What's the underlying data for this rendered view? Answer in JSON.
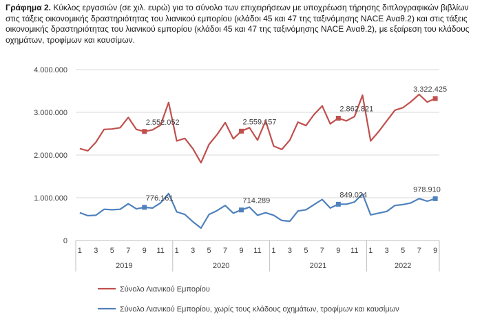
{
  "caption": {
    "label": "Γράφημα 2.",
    "text": " Κύκλος εργασιών (σε χιλ. ευρώ) για το σύνολο των επιχειρήσεων με υποχρέωση τήρησης διπλογραφικών βιβλίων στις τάξεις οικονομικής δραστηριότητας του λιανικού εμπορίου (κλάδοι 45 και 47 της ταξινόμησης NACE Αναθ.2) και στις τάξεις οικονομικής δραστηριότητας του λιανικού εμπορίου (κλάδοι 45 και 47 της ταξινόμησης NACE Αναθ.2), με εξαίρεση του κλάδους οχημάτων, τροφίμων και καυσίμων."
  },
  "chart_data": {
    "type": "line",
    "ylim": [
      0,
      4000000
    ],
    "y_ticks": [
      "0",
      "1.000.000",
      "2.000.000",
      "3.000.000",
      "4.000.000"
    ],
    "grid": true,
    "legend_position": "bottom-left",
    "x_tick_labels": [
      "1",
      "3",
      "5",
      "7",
      "9",
      "11",
      "1",
      "3",
      "5",
      "7",
      "9",
      "11",
      "1",
      "3",
      "5",
      "7",
      "9",
      "11",
      "1",
      "3",
      "5",
      "7",
      "9"
    ],
    "years": [
      "2019",
      "2020",
      "2021",
      "2022"
    ],
    "months_per_year": [
      12,
      12,
      12,
      9
    ],
    "series": [
      {
        "name": "Σύνολο Λιανικού Εμπορίου",
        "color": "#c0504d",
        "values": [
          2150000,
          2100000,
          2300000,
          2600000,
          2610000,
          2640000,
          2880000,
          2600000,
          2552052,
          2590000,
          2700000,
          3230000,
          2330000,
          2390000,
          2150000,
          1820000,
          2250000,
          2480000,
          2760000,
          2380000,
          2559157,
          2640000,
          2350000,
          2800000,
          2210000,
          2130000,
          2350000,
          2770000,
          2690000,
          2950000,
          3150000,
          2730000,
          2862821,
          2800000,
          2900000,
          3400000,
          2330000,
          2550000,
          2800000,
          3050000,
          3110000,
          3250000,
          3420000,
          3240000,
          3322425
        ],
        "markers": [
          {
            "index": 8,
            "label": "2.552.052"
          },
          {
            "index": 20,
            "label": "2.559.157"
          },
          {
            "index": 32,
            "label": "2.862.821"
          },
          {
            "index": 44,
            "label": "3.322.425"
          }
        ]
      },
      {
        "name": "Σύνολο Λιανικού Εμπορίου, χωρίς τους κλάδους οχημάτων, τροφίμων και καυσίμων",
        "color": "#4f81bd",
        "values": [
          650000,
          580000,
          590000,
          730000,
          720000,
          730000,
          860000,
          740000,
          776161,
          760000,
          880000,
          1100000,
          670000,
          610000,
          440000,
          290000,
          610000,
          700000,
          820000,
          640000,
          714289,
          780000,
          590000,
          650000,
          590000,
          470000,
          450000,
          690000,
          720000,
          840000,
          960000,
          760000,
          849024,
          850000,
          900000,
          1090000,
          600000,
          640000,
          680000,
          820000,
          840000,
          880000,
          980000,
          920000,
          978910
        ],
        "markers": [
          {
            "index": 8,
            "label": "776.161"
          },
          {
            "index": 20,
            "label": "714.289"
          },
          {
            "index": 32,
            "label": "849.024"
          },
          {
            "index": 44,
            "label": "978.910"
          }
        ]
      }
    ]
  }
}
